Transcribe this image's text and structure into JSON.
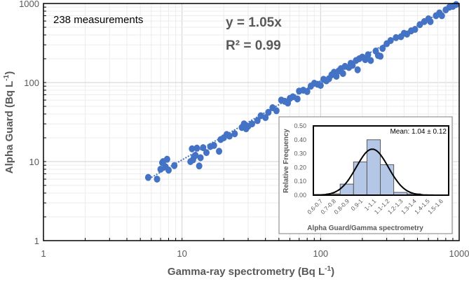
{
  "chart_data": [
    {
      "type": "scatter",
      "xlabel": "Gamma-ray spectrometry (Bq L",
      "ylabel": "Alpha Guard (Bq L",
      "unit_superscript": "-1",
      "axis_close": ")",
      "x_scale": "log",
      "y_scale": "log",
      "xlim": [
        1,
        1000
      ],
      "ylim": [
        1,
        1000
      ],
      "x_ticks": [
        "1",
        "10",
        "100",
        "1000"
      ],
      "y_ticks": [
        "1",
        "10",
        "100",
        "1000"
      ],
      "grid": true,
      "annotation_count": "238 measurements",
      "equation": "y = 1.05x",
      "r2": "R² = 0.99",
      "trendline": {
        "slope": 1.05,
        "x_range": [
          6,
          1000
        ],
        "style": "dotted"
      },
      "point_color": "#4472C4",
      "points": [
        [
          5.7,
          6.3
        ],
        [
          6.6,
          6.0
        ],
        [
          7,
          8
        ],
        [
          7.2,
          9.7
        ],
        [
          7.3,
          10
        ],
        [
          7.6,
          8.6
        ],
        [
          7.8,
          10.7
        ],
        [
          8,
          7.8
        ],
        [
          8.8,
          8.9
        ],
        [
          11.5,
          10
        ],
        [
          11.8,
          14.5
        ],
        [
          12,
          10.5
        ],
        [
          12.2,
          11.5
        ],
        [
          12.5,
          12
        ],
        [
          12.8,
          14.8
        ],
        [
          13.3,
          8.8
        ],
        [
          13.6,
          11.2
        ],
        [
          14.2,
          15
        ],
        [
          15,
          13
        ],
        [
          16,
          15.5
        ],
        [
          17,
          16
        ],
        [
          18.5,
          13.5
        ],
        [
          19,
          19
        ],
        [
          20,
          20
        ],
        [
          21,
          22
        ],
        [
          22,
          21
        ],
        [
          24,
          22.5
        ],
        [
          27,
          27
        ],
        [
          28,
          30
        ],
        [
          29,
          26
        ],
        [
          30,
          28
        ],
        [
          32,
          30
        ],
        [
          35,
          33
        ],
        [
          37,
          38
        ],
        [
          40,
          36
        ],
        [
          42,
          42
        ],
        [
          45,
          48
        ],
        [
          48,
          44
        ],
        [
          52,
          60
        ],
        [
          55,
          58
        ],
        [
          58,
          55
        ],
        [
          60,
          63
        ],
        [
          63,
          66
        ],
        [
          68,
          62
        ],
        [
          70,
          78
        ],
        [
          75,
          80
        ],
        [
          80,
          77
        ],
        [
          85,
          90
        ],
        [
          90,
          98
        ],
        [
          95,
          95
        ],
        [
          100,
          92
        ],
        [
          105,
          110
        ],
        [
          110,
          105
        ],
        [
          115,
          112
        ],
        [
          120,
          125
        ],
        [
          125,
          135
        ],
        [
          130,
          120
        ],
        [
          135,
          140
        ],
        [
          140,
          150
        ],
        [
          145,
          130
        ],
        [
          150,
          160
        ],
        [
          160,
          155
        ],
        [
          165,
          175
        ],
        [
          170,
          165
        ],
        [
          180,
          190
        ],
        [
          185,
          145
        ],
        [
          190,
          200
        ],
        [
          200,
          210
        ],
        [
          210,
          195
        ],
        [
          220,
          225
        ],
        [
          230,
          190
        ],
        [
          250,
          250
        ],
        [
          260,
          220
        ],
        [
          270,
          215
        ],
        [
          280,
          270
        ],
        [
          300,
          310
        ],
        [
          320,
          340
        ],
        [
          350,
          370
        ],
        [
          380,
          380
        ],
        [
          400,
          420
        ],
        [
          420,
          410
        ],
        [
          450,
          450
        ],
        [
          480,
          470
        ],
        [
          520,
          540
        ],
        [
          560,
          590
        ],
        [
          600,
          640
        ],
        [
          620,
          590
        ],
        [
          680,
          700
        ],
        [
          720,
          760
        ],
        [
          750,
          700
        ],
        [
          800,
          830
        ],
        [
          850,
          900
        ],
        [
          900,
          920
        ],
        [
          950,
          970
        ]
      ]
    },
    {
      "type": "bar",
      "xlabel": "Alpha Guard/Gamma spectrometry",
      "ylabel": "Relative Frequency",
      "categories": [
        "0.6-0.7",
        "0.7-0.8",
        "0.8-0.9",
        "0.9-1",
        "1-1.1",
        "1.1-1.2",
        "1.2-1.3",
        "1.3-1.4",
        "1.4-1.5",
        "1.5-1.6"
      ],
      "values": [
        0.005,
        0.01,
        0.08,
        0.24,
        0.4,
        0.22,
        0.02,
        0.01,
        0,
        0
      ],
      "ylim": [
        0,
        0.5
      ],
      "y_ticks": [
        "0.00",
        "0.10",
        "0.20",
        "0.30",
        "0.40",
        "0.50"
      ],
      "annotation": "Mean: 1.04 ± 0.12",
      "fit": {
        "type": "normal",
        "mean": 1.04,
        "sd": 0.12
      },
      "bar_color": "#B4C7E7"
    }
  ]
}
